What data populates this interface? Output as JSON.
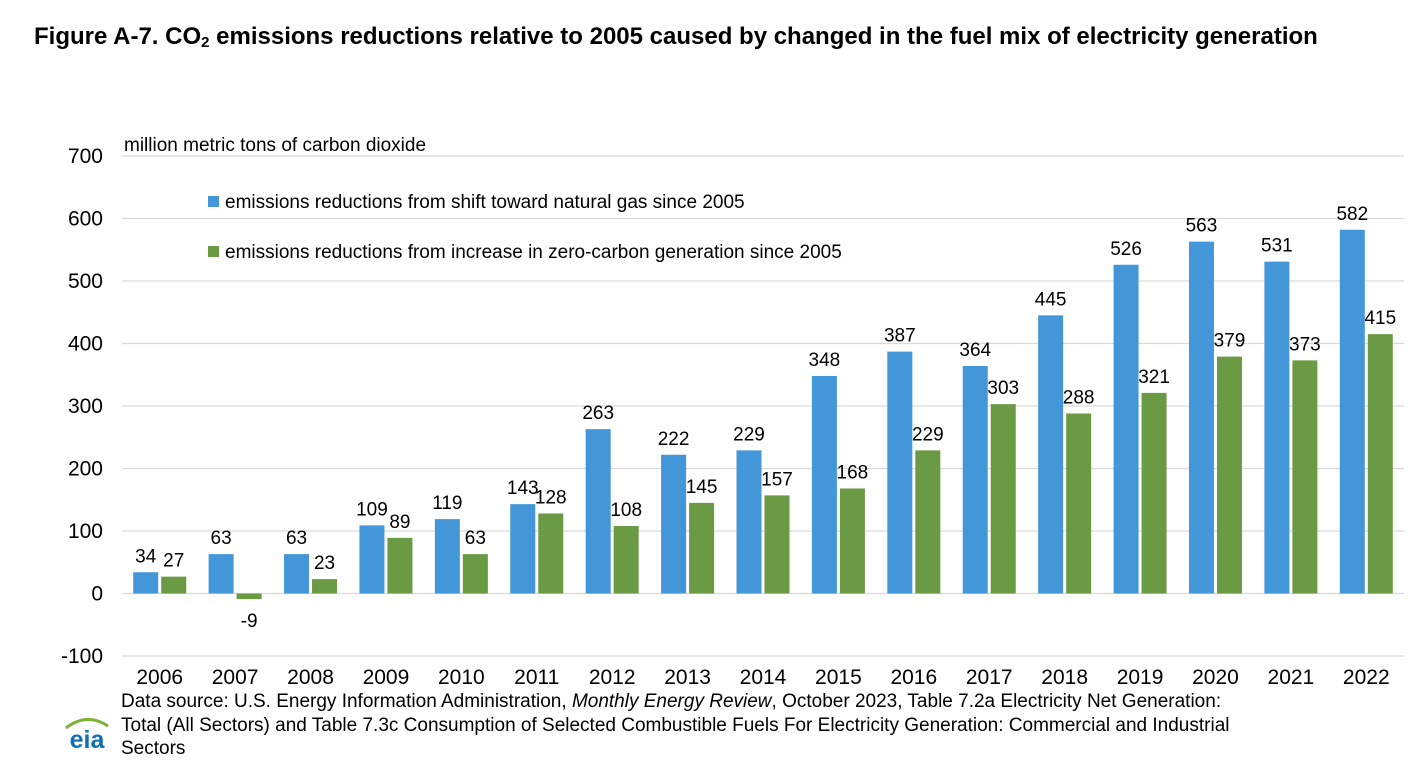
{
  "figure": {
    "title_prefix": "Figure A-7. CO",
    "title_subscript": "2",
    "title_suffix": " emissions reductions relative to 2005 caused by changed in the fuel mix of electricity generation"
  },
  "chart_data": {
    "type": "bar",
    "ylabel": "million metric tons of carbon dioxide",
    "xlabel": "",
    "ylim": [
      -100,
      700
    ],
    "yticks": [
      -100,
      0,
      100,
      200,
      300,
      400,
      500,
      600,
      700
    ],
    "grid": true,
    "legend_position": "top-left",
    "categories": [
      "2006",
      "2007",
      "2008",
      "2009",
      "2010",
      "2011",
      "2012",
      "2013",
      "2014",
      "2015",
      "2016",
      "2017",
      "2018",
      "2019",
      "2020",
      "2021",
      "2022"
    ],
    "series": [
      {
        "name": "emissions reductions from shift toward natural gas since 2005",
        "color": "#4397D8",
        "values": [
          34,
          63,
          63,
          109,
          119,
          143,
          263,
          222,
          229,
          348,
          387,
          364,
          445,
          526,
          563,
          531,
          582
        ]
      },
      {
        "name": "emissions reductions from increase in zero-carbon generation since 2005",
        "color": "#6B9A45",
        "values": [
          27,
          -9,
          23,
          89,
          63,
          128,
          108,
          145,
          157,
          168,
          229,
          303,
          288,
          321,
          379,
          373,
          415
        ]
      }
    ]
  },
  "source": {
    "prefix": "Data source: U.S. Energy Information Administration, ",
    "publication": "Monthly Energy Review",
    "suffix": ", October 2023, Table 7.2a Electricity Net Generation: Total (All Sectors) and Table 7.3c Consumption of Selected Combustible Fuels For Electricity Generation: Commercial and Industrial Sectors"
  },
  "logo": {
    "text": "eia",
    "color": "#0E6FB5"
  }
}
